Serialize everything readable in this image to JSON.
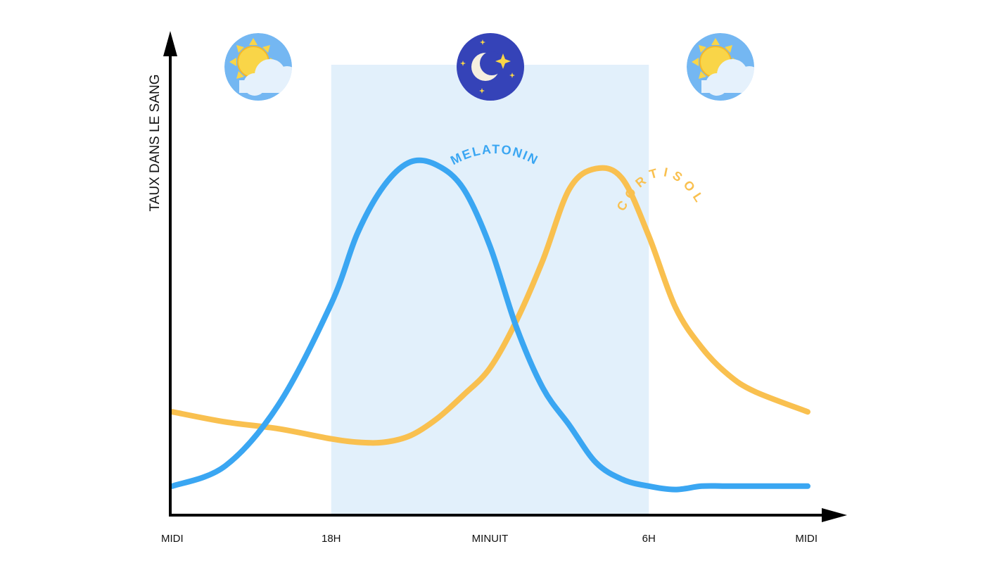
{
  "chart_data": {
    "type": "line",
    "ylabel": "TAUX DANS LE SANG",
    "xlabel": "",
    "x": [
      12,
      14,
      16,
      18,
      19,
      20,
      21,
      22,
      23,
      24,
      25,
      26,
      27,
      28,
      29,
      30,
      31,
      32,
      33,
      34,
      36
    ],
    "x_ticks": [
      {
        "x": 12,
        "label": "MIDI"
      },
      {
        "x": 18,
        "label": "18H"
      },
      {
        "x": 24,
        "label": "MINUIT"
      },
      {
        "x": 30,
        "label": "6H"
      },
      {
        "x": 36,
        "label": "MIDI"
      }
    ],
    "xlim": [
      12,
      36
    ],
    "ylim": [
      0,
      100
    ],
    "night_band": {
      "from": 18,
      "to": 30
    },
    "series": [
      {
        "name": "MELATONIN",
        "color": "#3aa6f2",
        "values": [
          4,
          10,
          28,
          58,
          79,
          93,
          100,
          99,
          92,
          75,
          51,
          33,
          22,
          11,
          6,
          4,
          3,
          4,
          4,
          4,
          4
        ]
      },
      {
        "name": "CORTISOL",
        "color": "#f9c04f",
        "values": [
          26,
          23,
          21,
          18,
          17,
          17,
          19,
          24,
          31,
          39,
          53,
          71,
          92,
          98,
          95,
          78,
          57,
          45,
          37,
          32,
          26
        ]
      }
    ],
    "grid": false,
    "legend": "none"
  },
  "icons": {
    "left": "sun-cloud-icon",
    "center": "moon-stars-icon",
    "right": "sun-cloud-icon"
  },
  "colors": {
    "night_band": "#e2f0fb",
    "sun_circle": "#74b7f2",
    "sun": "#f9d548",
    "moon_circle": "#3543b8",
    "axis": "#000000"
  }
}
